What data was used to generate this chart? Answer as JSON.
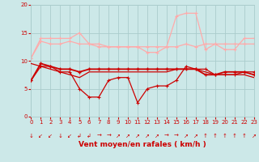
{
  "x": [
    0,
    1,
    2,
    3,
    4,
    5,
    6,
    7,
    8,
    9,
    10,
    11,
    12,
    13,
    14,
    15,
    16,
    17,
    18,
    19,
    20,
    21,
    22,
    23
  ],
  "series_light1": [
    10.5,
    14.0,
    14.0,
    14.0,
    14.0,
    15.0,
    13.0,
    12.5,
    12.5,
    12.5,
    12.5,
    12.5,
    11.5,
    11.5,
    12.5,
    18.0,
    18.5,
    18.5,
    12.0,
    13.0,
    12.0,
    12.0,
    14.0,
    14.0
  ],
  "series_light2": [
    10.5,
    13.5,
    13.0,
    13.0,
    13.5,
    13.0,
    13.0,
    13.0,
    12.5,
    12.5,
    12.5,
    12.5,
    12.5,
    12.5,
    12.5,
    12.5,
    13.0,
    12.5,
    13.0,
    13.0,
    13.0,
    13.0,
    13.0,
    13.0
  ],
  "series_dark_flat": [
    6.5,
    9.5,
    9.0,
    8.5,
    8.5,
    8.0,
    8.5,
    8.5,
    8.5,
    8.5,
    8.5,
    8.5,
    8.5,
    8.5,
    8.5,
    8.5,
    8.5,
    8.5,
    7.5,
    7.5,
    8.0,
    8.0,
    8.0,
    7.5
  ],
  "series_dark_vary": [
    6.5,
    9.0,
    9.0,
    8.0,
    8.0,
    5.0,
    3.5,
    3.5,
    6.5,
    7.0,
    7.0,
    2.5,
    5.0,
    5.5,
    5.5,
    6.5,
    9.0,
    8.5,
    8.5,
    7.5,
    7.5,
    7.5,
    8.0,
    8.0
  ],
  "series_dark2": [
    9.5,
    9.0,
    8.5,
    8.0,
    7.5,
    7.0,
    8.0,
    8.0,
    8.0,
    8.0,
    8.0,
    8.0,
    8.0,
    8.0,
    8.0,
    8.5,
    8.5,
    8.5,
    8.0,
    7.5,
    7.5,
    7.5,
    7.5,
    7.0
  ],
  "bg_color": "#cce8e8",
  "grid_color": "#aacccc",
  "color_light": "#ffaaaa",
  "color_dark": "#cc0000",
  "xlabel": "Vent moyen/en rafales ( km/h )",
  "ylim": [
    0,
    20
  ],
  "xlim": [
    0,
    23
  ],
  "yticks": [
    0,
    5,
    10,
    15,
    20
  ],
  "xticks": [
    0,
    1,
    2,
    3,
    4,
    5,
    6,
    7,
    8,
    9,
    10,
    11,
    12,
    13,
    14,
    15,
    16,
    17,
    18,
    19,
    20,
    21,
    22,
    23
  ],
  "arrows": [
    "↓",
    "↙",
    "↙",
    "↓",
    "↙",
    "↲",
    "↲",
    "→",
    "→",
    "↗",
    "↗",
    "↗",
    "↗",
    "↗",
    "→",
    "→",
    "↗",
    "↗",
    "↑",
    "↑",
    "↑",
    "↑",
    "↑",
    "↗"
  ]
}
